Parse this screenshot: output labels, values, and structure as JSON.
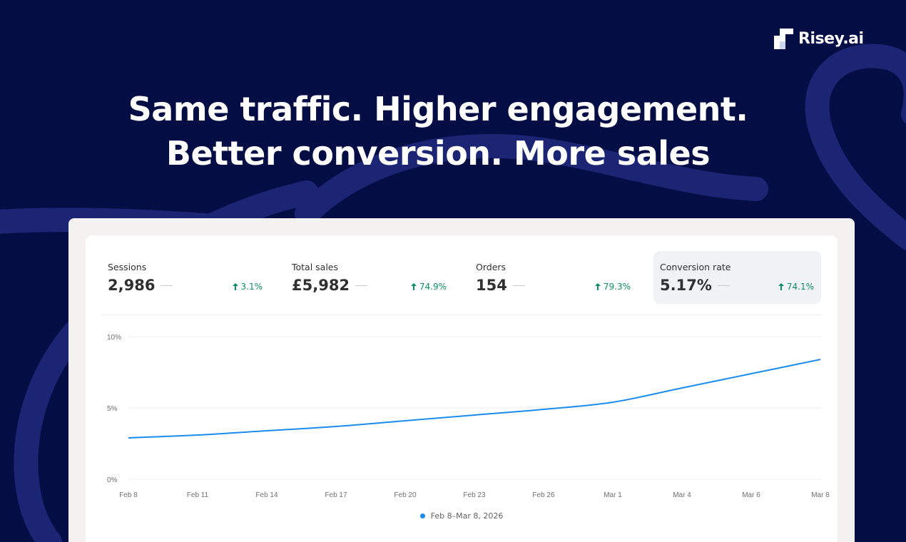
{
  "brand": {
    "name": "Risey.ai",
    "logo_icon": "risey-logo-icon"
  },
  "headline": {
    "line1": "Same traffic. Higher engagement.",
    "line2": "Better conversion. More sales"
  },
  "colors": {
    "background": "#050d45",
    "swirl": "#1b2574",
    "accent_line": "#1a8cf0",
    "positive": "#0c8f5e"
  },
  "metrics": [
    {
      "label": "Sessions",
      "value": "2,986",
      "delta": "3.1%",
      "active": false
    },
    {
      "label": "Total sales",
      "value": "£5,982",
      "delta": "74.9%",
      "active": false
    },
    {
      "label": "Orders",
      "value": "154",
      "delta": "79.3%",
      "active": false
    },
    {
      "label": "Conversion rate",
      "value": "5.17%",
      "delta": "74.1%",
      "active": true
    }
  ],
  "chart_data": {
    "type": "line",
    "title": "",
    "xlabel": "",
    "ylabel": "",
    "x": [
      "Feb 8",
      "Feb 11",
      "Feb 14",
      "Feb 17",
      "Feb 20",
      "Feb 23",
      "Feb 26",
      "Mar 1",
      "Mar 4",
      "Mar 6",
      "Mar 8"
    ],
    "y_ticks": [
      "0%",
      "5%",
      "10%"
    ],
    "ylim": [
      0,
      10
    ],
    "grid": true,
    "legend": "bottom-center",
    "series": [
      {
        "name": "Feb 8–Mar 8, 2026",
        "color": "#1a8cf0",
        "values": [
          2.9,
          3.1,
          3.4,
          3.7,
          4.1,
          4.5,
          4.9,
          5.4,
          6.4,
          7.4,
          8.4
        ]
      }
    ]
  }
}
